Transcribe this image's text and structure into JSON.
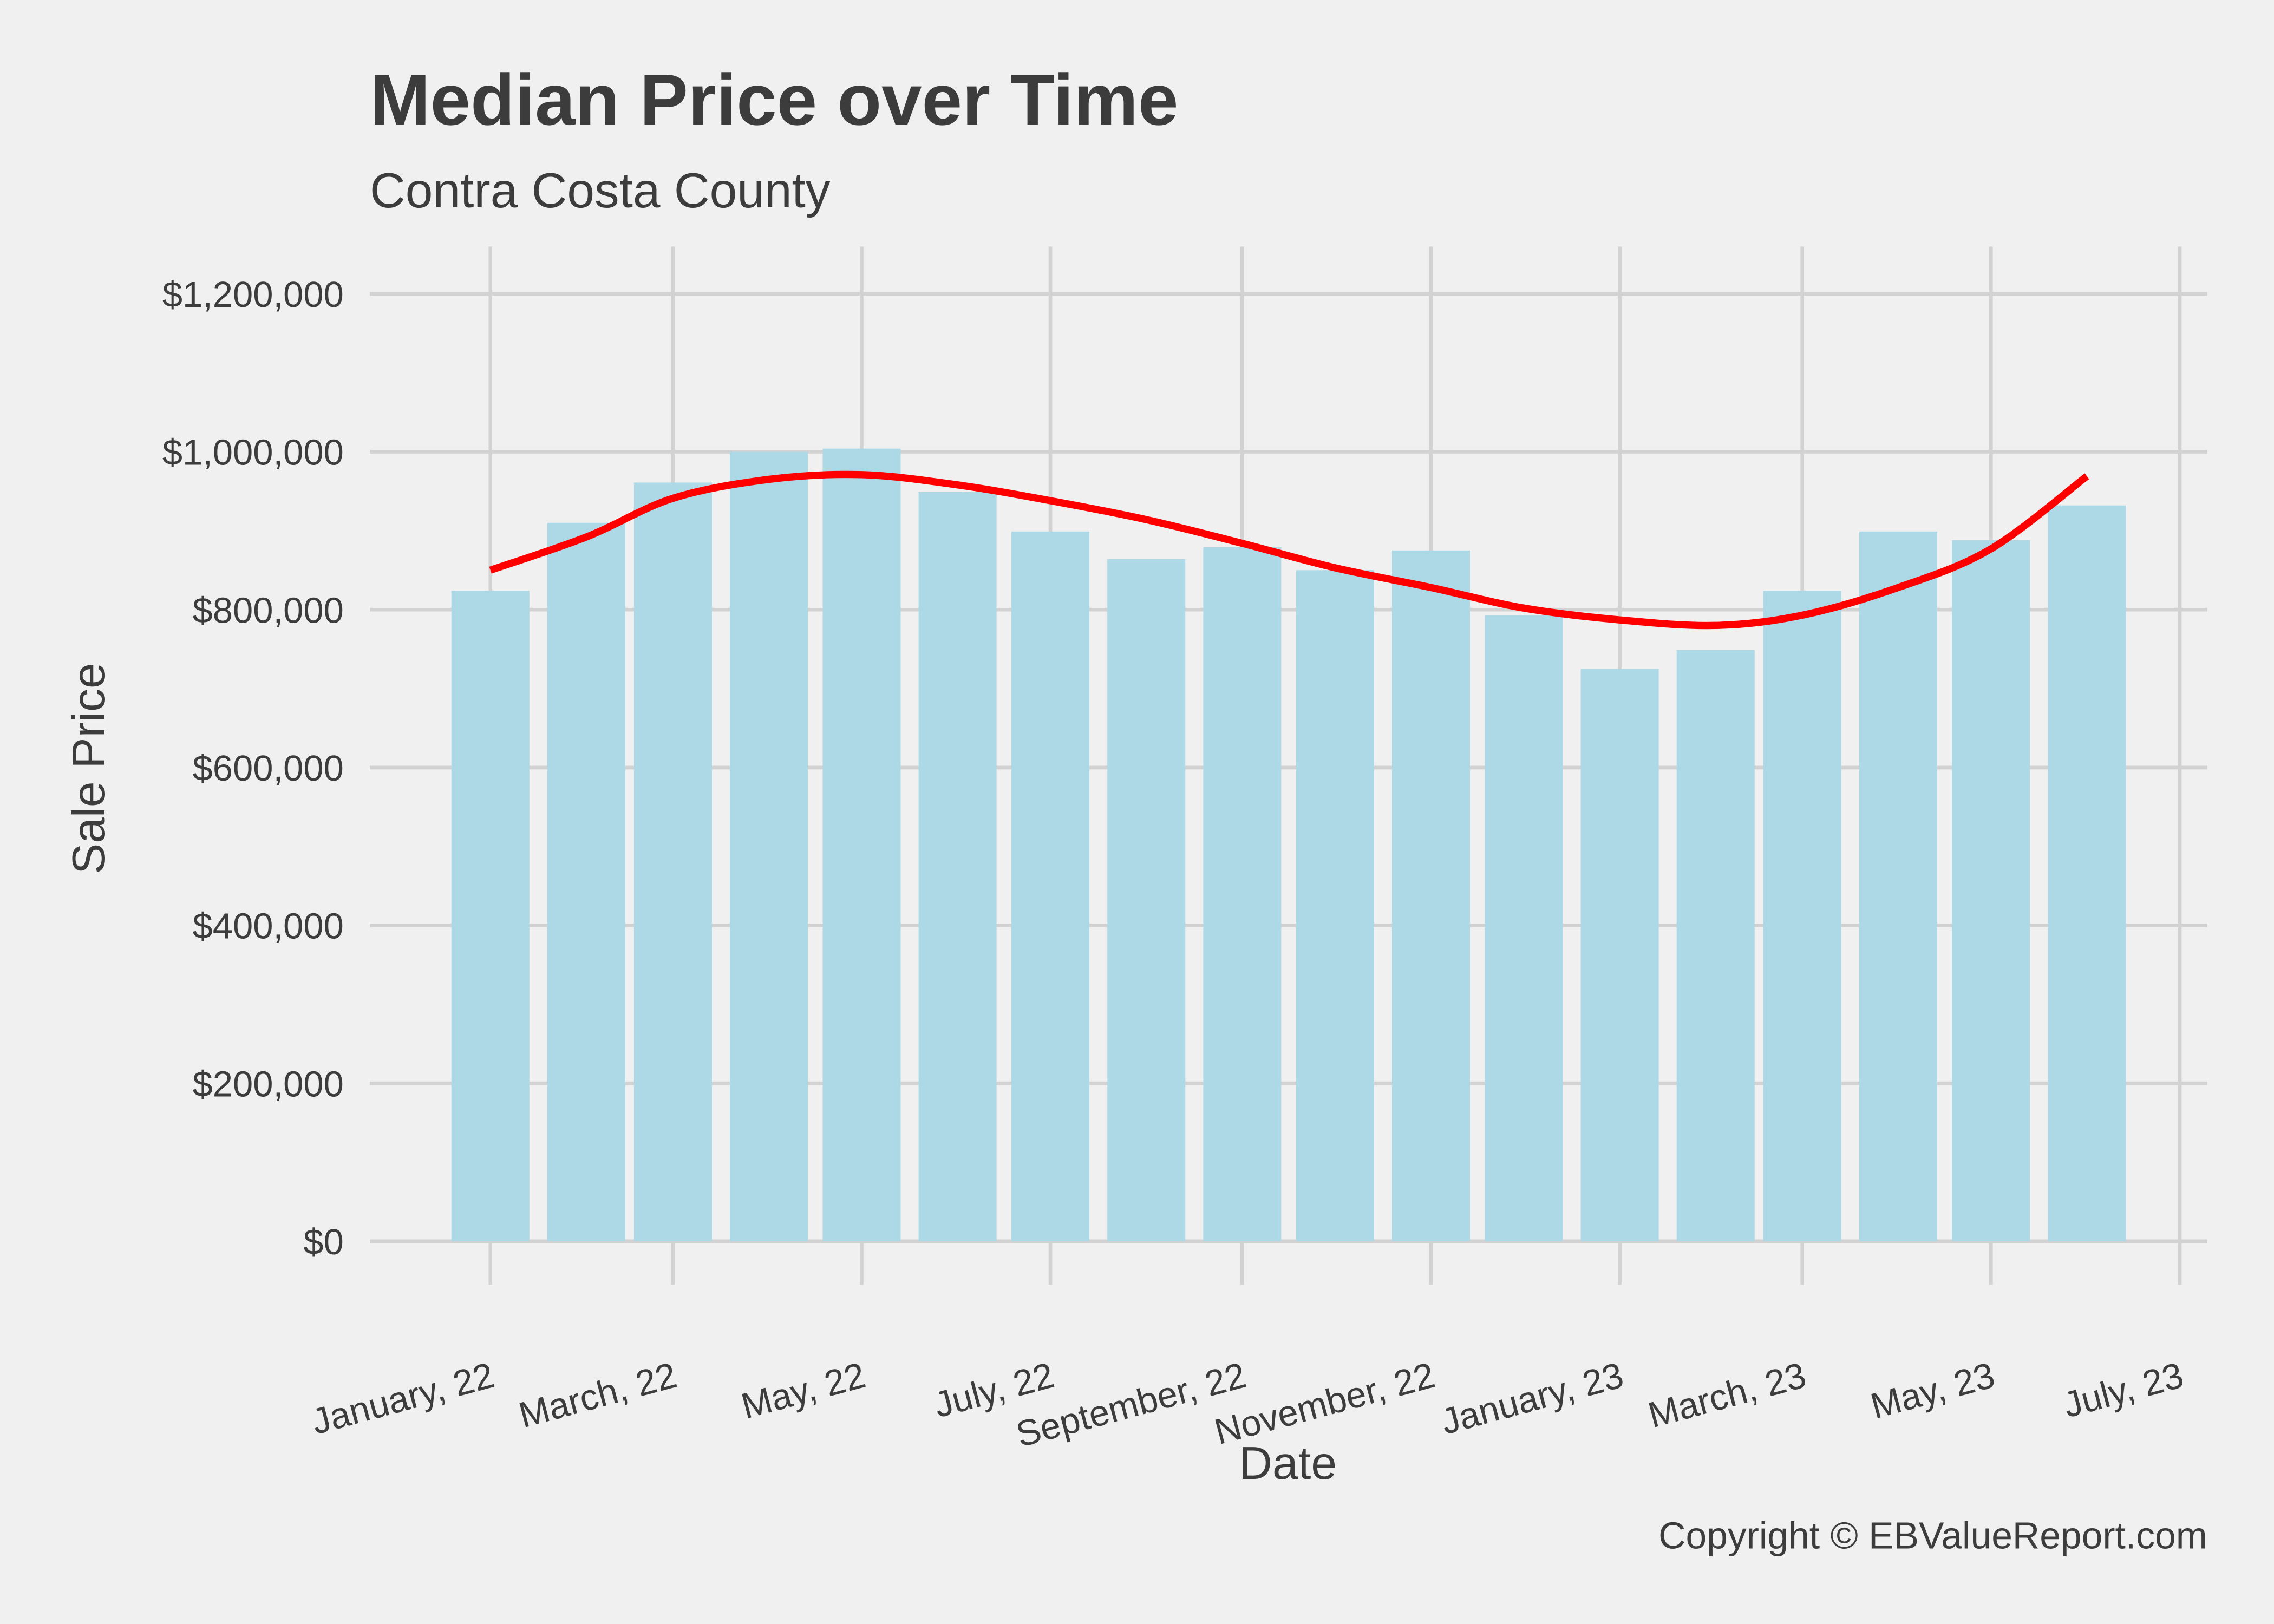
{
  "chart_data": {
    "type": "bar",
    "title": "Median Price over Time",
    "subtitle": "Contra Costa County",
    "x_label": "Date",
    "y_label": "Sale Price",
    "caption": "Copyright  © EBValueReport.com",
    "x": [
      "2022-01",
      "2022-02",
      "2022-03",
      "2022-04",
      "2022-05",
      "2022-06",
      "2022-07",
      "2022-08",
      "2022-09",
      "2022-10",
      "2022-11",
      "2022-12",
      "2023-01",
      "2023-02",
      "2023-03",
      "2023-04",
      "2023-05",
      "2023-06"
    ],
    "series": [
      {
        "type": "bar",
        "color": "#add8e6",
        "values": [
          824000,
          910000,
          961000,
          1000000,
          1004000,
          949000,
          899000,
          864000,
          879000,
          850000,
          875000,
          793000,
          725000,
          749000,
          824000,
          899000,
          888000,
          932000
        ]
      },
      {
        "type": "line",
        "color": "#ff0000",
        "values": [
          850000,
          892000,
          941000,
          965000,
          971000,
          958000,
          938000,
          914000,
          884000,
          853000,
          828000,
          802000,
          787000,
          780000,
          793000,
          828000,
          877000,
          969000
        ]
      }
    ],
    "xlim": [
      "2021-12",
      "2023-07"
    ],
    "xticks": [
      {
        "value": "2022-01",
        "label": "January, 22"
      },
      {
        "value": "2022-03",
        "label": "March, 22"
      },
      {
        "value": "2022-05",
        "label": "May, 22"
      },
      {
        "value": "2022-07",
        "label": "July, 22"
      },
      {
        "value": "2022-09",
        "label": "September, 22"
      },
      {
        "value": "2022-11",
        "label": "November, 22"
      },
      {
        "value": "2023-01",
        "label": "January, 23"
      },
      {
        "value": "2023-03",
        "label": "March, 23"
      },
      {
        "value": "2023-05",
        "label": "May, 23"
      },
      {
        "value": "2023-07",
        "label": "July, 23"
      }
    ],
    "ylim": [
      0,
      1260000
    ],
    "yticks": [
      {
        "value": 0,
        "label": "$0"
      },
      {
        "value": 200000,
        "label": "$200,000"
      },
      {
        "value": 400000,
        "label": "$400,000"
      },
      {
        "value": 600000,
        "label": "$600,000"
      },
      {
        "value": 800000,
        "label": "$800,000"
      },
      {
        "value": 1000000,
        "label": "$1,000,000"
      },
      {
        "value": 1200000,
        "label": "$1,200,000"
      }
    ],
    "grid": true
  }
}
